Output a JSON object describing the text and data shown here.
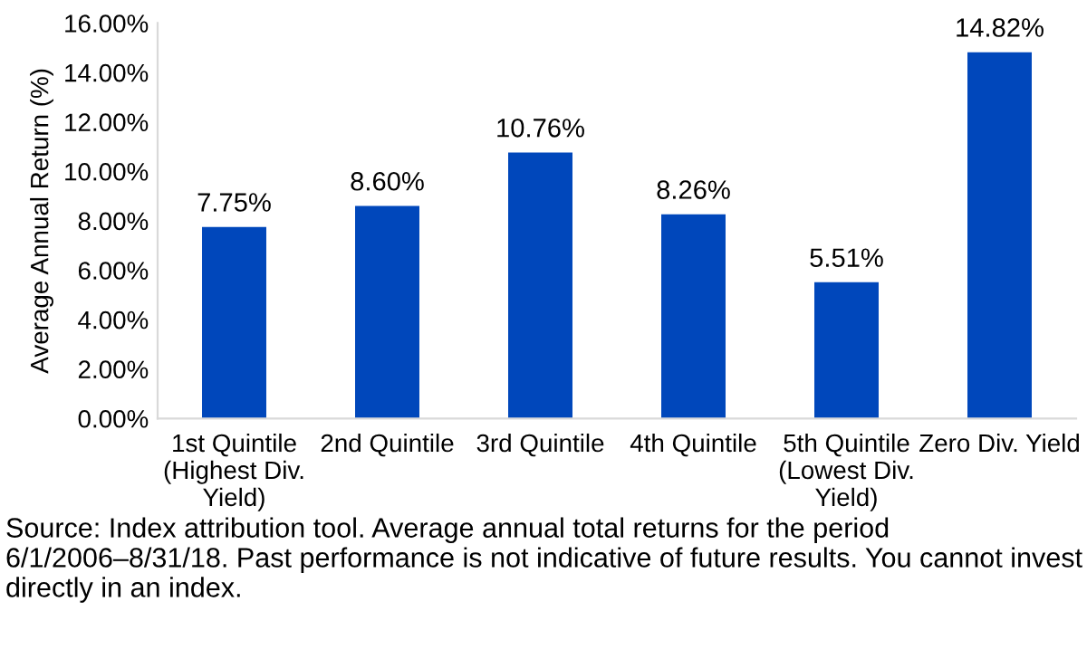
{
  "chart_data": {
    "type": "bar",
    "ylabel": "Average Annual Return (%)",
    "categories": [
      "1st Quintile\n(Highest Div.\nYield)",
      "2nd Quintile",
      "3rd Quintile",
      "4th Quintile",
      "5th Quintile\n(Lowest Div.\nYield)",
      "Zero Div. Yield"
    ],
    "values": [
      7.75,
      8.6,
      10.76,
      8.26,
      5.51,
      14.82
    ],
    "value_labels": [
      "7.75%",
      "8.60%",
      "10.76%",
      "8.26%",
      "5.51%",
      "14.82%"
    ],
    "color": "#0047bb",
    "ylim": [
      0,
      16
    ],
    "yticks": [
      {
        "value": 0,
        "label": "0.00%"
      },
      {
        "value": 2,
        "label": "2.00%"
      },
      {
        "value": 4,
        "label": "4.00%"
      },
      {
        "value": 6,
        "label": "6.00%"
      },
      {
        "value": 8,
        "label": "8.00%"
      },
      {
        "value": 10,
        "label": "10.00%"
      },
      {
        "value": 12,
        "label": "12.00%"
      },
      {
        "value": 14,
        "label": "14.00%"
      },
      {
        "value": 16,
        "label": "16.00%"
      }
    ],
    "grid": false,
    "legend": false,
    "annotations": [
      "Source: Index attribution tool. Average annual total returns for the period 6/1/2006–8/31/18. Past performance is not indicative of future results. You cannot invest directly in an index."
    ]
  }
}
